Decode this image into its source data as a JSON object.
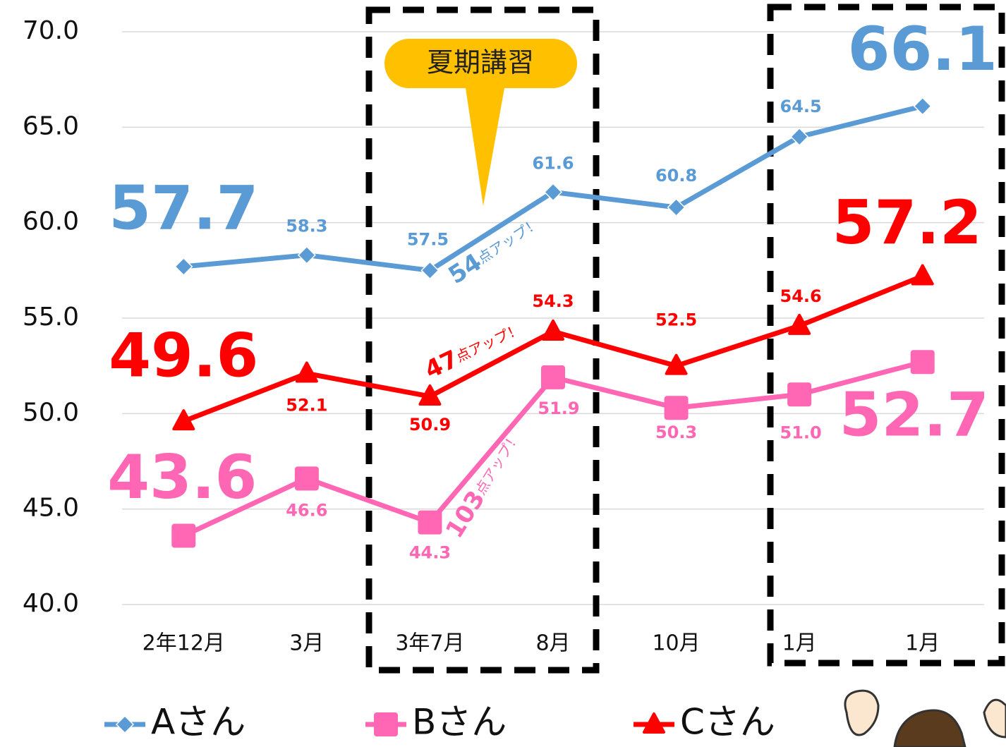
{
  "chart_data": {
    "type": "line",
    "categories": [
      "2年12月",
      "3月",
      "3年7月",
      "8月",
      "10月",
      "1月",
      "1月"
    ],
    "series": [
      {
        "name": "Aさん",
        "color": "#5b9bd5",
        "marker": "diamond",
        "values": [
          57.7,
          58.3,
          57.5,
          61.6,
          60.8,
          64.5,
          66.1
        ]
      },
      {
        "name": "Bさん",
        "color": "#ff66b3",
        "marker": "square",
        "values": [
          43.6,
          46.6,
          44.3,
          51.9,
          50.3,
          51.0,
          52.7
        ],
        "value_labels": [
          "43.6",
          "46.6",
          "44.3",
          "51.9",
          "50.3",
          "51.0",
          "52.7"
        ]
      },
      {
        "name": "Cさん",
        "color": "#ff0000",
        "marker": "triangle",
        "values": [
          49.6,
          52.1,
          50.9,
          54.3,
          52.5,
          54.6,
          57.2
        ]
      }
    ],
    "ylim": [
      40,
      70
    ],
    "yticks": [
      {
        "value": 40,
        "label": "40.0"
      },
      {
        "value": 45,
        "label": "45.0"
      },
      {
        "value": 50,
        "label": "50.0"
      },
      {
        "value": 55,
        "label": "55.0"
      },
      {
        "value": 60,
        "label": "60.0"
      },
      {
        "value": 65,
        "label": "65.0"
      },
      {
        "value": 70,
        "label": "70.0"
      }
    ],
    "grid": true,
    "legend": "bottom",
    "callout": "夏期講習",
    "annotations": [
      {
        "number": "54",
        "text": "点アップ！"
      },
      {
        "number": "47",
        "text": "点アップ！"
      },
      {
        "number": "103",
        "text": "点アップ！"
      }
    ]
  }
}
